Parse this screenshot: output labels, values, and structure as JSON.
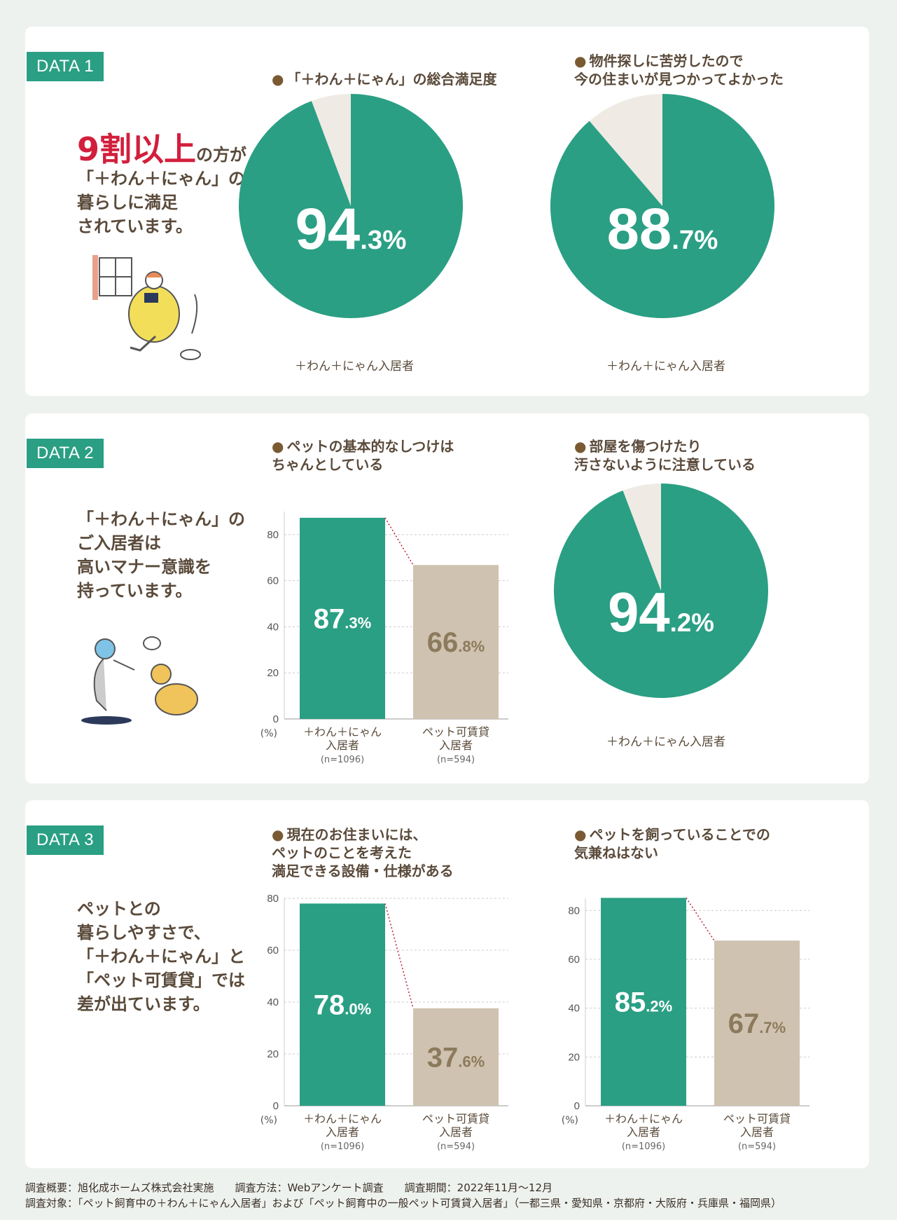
{
  "colors": {
    "green": "#2a9f84",
    "beige": "#cfc2b0",
    "cream": "#efebe4",
    "red": "#d21f3c",
    "brown": "#7a5a32"
  },
  "d1": {
    "tag": "DATA 1",
    "lead_big": "9割以上",
    "lead_tail": "の方が",
    "lead_rest": "「＋わん＋にゃん」の\n暮らしに満足\nされています。",
    "q1": "「＋わん＋にゃん」の総合満足度",
    "q2": "物件探しに苦労したので\n今の住まいが見つかってよかった",
    "pie1_big": "94",
    "pie1_small": ".3%",
    "pie1_cap": "＋わん＋にゃん入居者",
    "pie2_big": "88",
    "pie2_small": ".7%",
    "pie2_cap": "＋わん＋にゃん入居者"
  },
  "d2": {
    "tag": "DATA 2",
    "lead": "「＋わん＋にゃん」の\nご入居者は\n高いマナー意識を\n持っています。",
    "q1": "ペットの基本的なしつけは\nちゃんとしている",
    "q2": "部屋を傷つけたり\n汚さないように注意している",
    "pie_big": "94",
    "pie_small": ".2%",
    "pie_cap": "＋わん＋にゃん入居者"
  },
  "d3": {
    "tag": "DATA 3",
    "lead": "ペットとの\n暮らしやすさで、\n「＋わん＋にゃん」と\n「ペット可賃貸」では\n差が出ています。",
    "q1": "現在のお住まいには、\nペットのことを考えた\n満足できる設備・仕様がある",
    "q2": "ペットを飼っていることでの\n気兼ねはない"
  },
  "footer": {
    "line1": "調査概要：旭化成ホームズ株式会社実施　　調査方法：Webアンケート調査　　調査期間：2022年11月〜12月",
    "line2": "調査対象：「ペット飼育中の＋わん＋にゃん入居者」および「ペット飼育中の一般ペット可賃貸入居者」（一都三県・愛知県・京都府・大阪府・兵庫県・福岡県）"
  },
  "chart_data": [
    {
      "type": "pie",
      "title": "「＋わん＋にゃん」の総合満足度",
      "values": [
        94.3,
        5.7
      ],
      "label": "94.3%",
      "caption": "＋わん＋にゃん入居者"
    },
    {
      "type": "pie",
      "title": "物件探しに苦労したので今の住まいが見つかってよかった",
      "values": [
        88.7,
        11.3
      ],
      "label": "88.7%",
      "caption": "＋わん＋にゃん入居者"
    },
    {
      "type": "bar",
      "title": "ペットの基本的なしつけはちゃんとしている",
      "categories": [
        "＋わん＋にゃん\n入居者",
        "ペット可賃貸\n入居者"
      ],
      "n": [
        "(n=1096)",
        "(n=594)"
      ],
      "values": [
        87.3,
        66.8
      ],
      "labels_big": [
        "87",
        "66"
      ],
      "labels_small": [
        ".3%",
        ".8%"
      ],
      "ylim": [
        0,
        90
      ],
      "yticks": [
        0,
        20,
        40,
        60,
        80
      ],
      "yunit": "(%)"
    },
    {
      "type": "pie",
      "title": "部屋を傷つけたり汚さないように注意している",
      "values": [
        94.2,
        5.8
      ],
      "label": "94.2%",
      "caption": "＋わん＋にゃん入居者"
    },
    {
      "type": "bar",
      "title": "現在のお住まいには、ペットのことを考えた満足できる設備・仕様がある",
      "categories": [
        "＋わん＋にゃん\n入居者",
        "ペット可賃貸\n入居者"
      ],
      "n": [
        "(n=1096)",
        "(n=594)"
      ],
      "values": [
        78.0,
        37.6
      ],
      "labels_big": [
        "78",
        "37"
      ],
      "labels_small": [
        ".0%",
        ".6%"
      ],
      "ylim": [
        0,
        80
      ],
      "yticks": [
        0,
        20,
        40,
        60,
        80
      ],
      "yunit": "(%)"
    },
    {
      "type": "bar",
      "title": "ペットを飼っていることでの気兼ねはない",
      "categories": [
        "＋わん＋にゃん\n入居者",
        "ペット可賃貸\n入居者"
      ],
      "n": [
        "(n=1096)",
        "(n=594)"
      ],
      "values": [
        85.2,
        67.7
      ],
      "labels_big": [
        "85",
        "67"
      ],
      "labels_small": [
        ".2%",
        ".7%"
      ],
      "ylim": [
        0,
        85
      ],
      "yticks": [
        0,
        20,
        40,
        60,
        80
      ],
      "yunit": "(%)"
    }
  ]
}
